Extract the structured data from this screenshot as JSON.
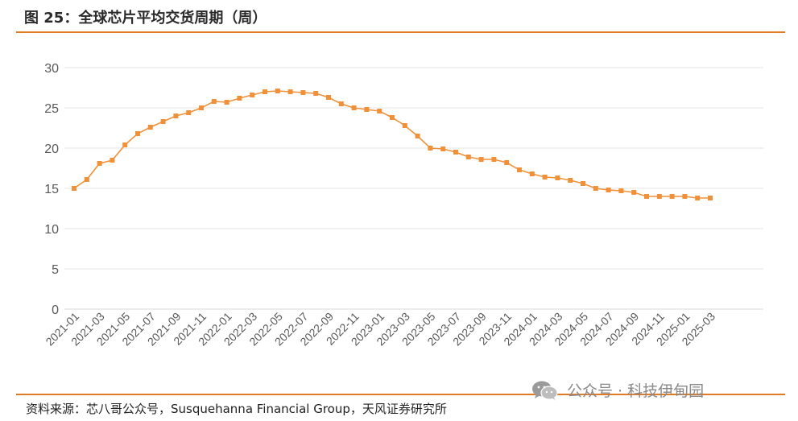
{
  "header": {
    "figure_title": "图 25：全球芯片平均交货周期（周）"
  },
  "footer": {
    "source": "资料来源：芯八哥公众号，Susquehanna Financial Group，天风证券研究所"
  },
  "watermark": {
    "text": "公众号 · 科技伊甸园",
    "icon": "wechat-icon"
  },
  "colors": {
    "accent_rule": "#e07b24",
    "series_line": "#f0913a",
    "gridline": "#e6e6e6",
    "tick_label": "#595959"
  },
  "chart_data": {
    "type": "line",
    "title": "",
    "xlabel": "",
    "ylabel": "",
    "ylim": [
      0,
      30
    ],
    "yticks": [
      0,
      5,
      10,
      15,
      20,
      25,
      30
    ],
    "grid": "horizontal",
    "legend": "none",
    "x_tick_labels": [
      "2021-01",
      "2021-03",
      "2021-05",
      "2021-07",
      "2021-09",
      "2021-11",
      "2022-01",
      "2022-03",
      "2022-05",
      "2022-07",
      "2022-09",
      "2022-11",
      "2023-01",
      "2023-03",
      "2023-05",
      "2023-07",
      "2023-09",
      "2023-11",
      "2024-01",
      "2024-03",
      "2024-05",
      "2024-07",
      "2024-09",
      "2024-11",
      "2025-01",
      "2025-03"
    ],
    "x": [
      "2021-01",
      "2021-02",
      "2021-03",
      "2021-04",
      "2021-05",
      "2021-06",
      "2021-07",
      "2021-08",
      "2021-09",
      "2021-10",
      "2021-11",
      "2021-12",
      "2022-01",
      "2022-02",
      "2022-03",
      "2022-04",
      "2022-05",
      "2022-06",
      "2022-07",
      "2022-08",
      "2022-09",
      "2022-10",
      "2022-11",
      "2022-12",
      "2023-01",
      "2023-02",
      "2023-03",
      "2023-04",
      "2023-05",
      "2023-06",
      "2023-07",
      "2023-08",
      "2023-09",
      "2023-10",
      "2023-11",
      "2023-12",
      "2024-01",
      "2024-02",
      "2024-03",
      "2024-04",
      "2024-05",
      "2024-06",
      "2024-07",
      "2024-08",
      "2024-09",
      "2024-10",
      "2024-11",
      "2024-12",
      "2025-01",
      "2025-02",
      "2025-03"
    ],
    "series": [
      {
        "values": [
          15.0,
          16.1,
          18.1,
          18.5,
          20.4,
          21.8,
          22.6,
          23.3,
          24.0,
          24.4,
          25.0,
          25.8,
          25.7,
          26.2,
          26.6,
          27.0,
          27.1,
          27.0,
          26.9,
          26.8,
          26.3,
          25.5,
          25.0,
          24.8,
          24.6,
          23.8,
          22.8,
          21.5,
          20.0,
          19.9,
          19.5,
          18.9,
          18.6,
          18.6,
          18.2,
          17.3,
          16.8,
          16.4,
          16.3,
          16.0,
          15.6,
          15.0,
          14.8,
          14.7,
          14.5,
          14.0,
          14.0,
          14.0,
          14.0,
          13.8,
          13.8
        ]
      }
    ]
  }
}
